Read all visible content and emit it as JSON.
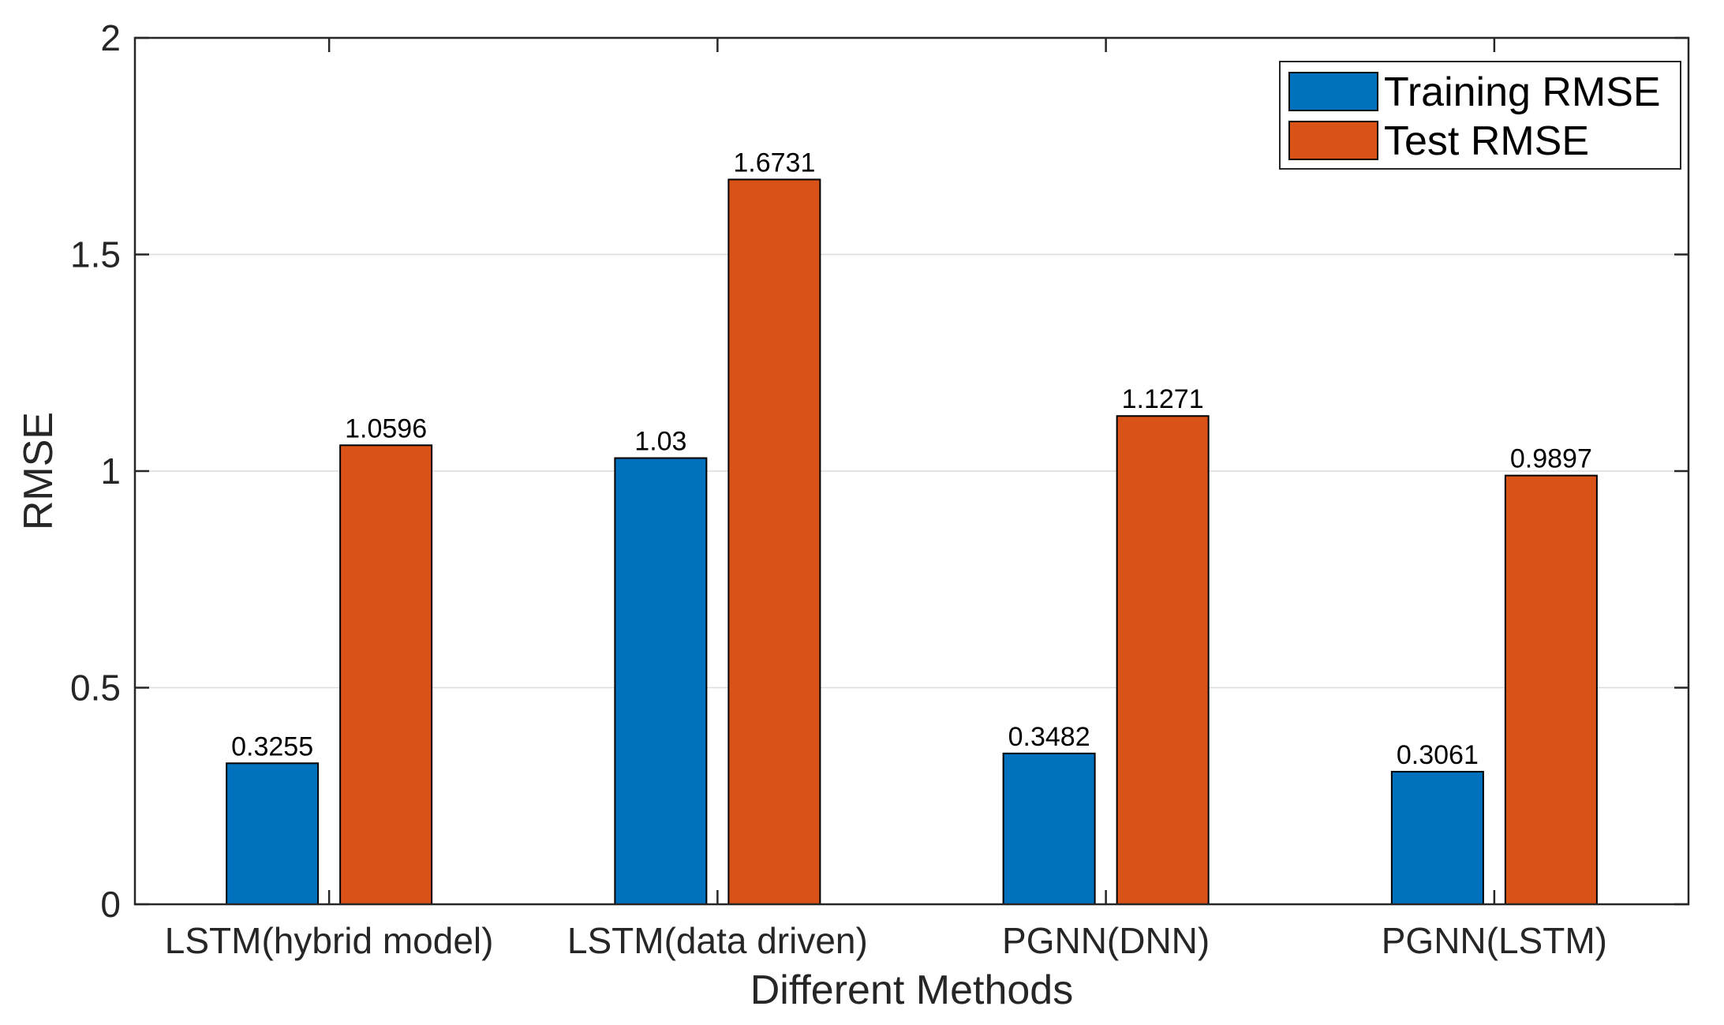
{
  "chart_data": {
    "type": "bar",
    "title": "",
    "xlabel": "Different Methods",
    "ylabel": "RMSE",
    "ylim": [
      0,
      2
    ],
    "yticks": [
      0,
      0.5,
      1,
      1.5,
      2
    ],
    "ytick_labels": [
      "0",
      "0.5",
      "1",
      "1.5",
      "2"
    ],
    "grid": "horizontal",
    "legend_position": "top-right",
    "categories": [
      "LSTM(hybrid model)",
      "LSTM(data driven)",
      "PGNN(DNN)",
      "PGNN(LSTM)"
    ],
    "series": [
      {
        "name": "Training RMSE",
        "color": "#0072BD",
        "values": [
          0.3255,
          1.03,
          0.3482,
          0.3061
        ],
        "labels": [
          "0.3255",
          "1.03",
          "0.3482",
          "0.3061"
        ]
      },
      {
        "name": "Test RMSE",
        "color": "#D95319",
        "values": [
          1.0596,
          1.6731,
          1.1271,
          0.9897
        ],
        "labels": [
          "1.0596",
          "1.6731",
          "1.1271",
          "0.9897"
        ]
      }
    ]
  }
}
